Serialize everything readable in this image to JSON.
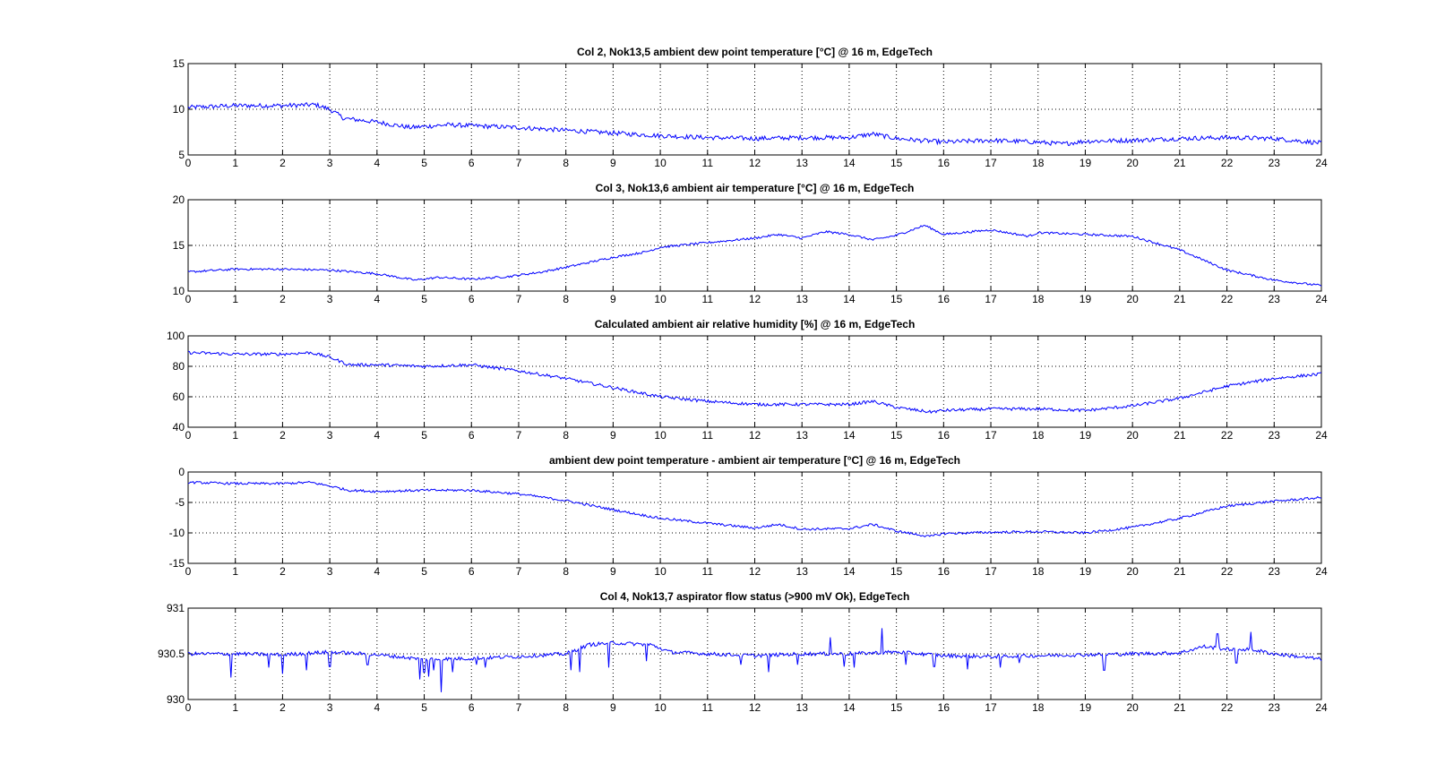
{
  "colors": {
    "line": "#0000ff",
    "axes": "#000000",
    "background": "#ffffff"
  },
  "chart_data": [
    {
      "type": "line",
      "title": "Col 2, Nok13,5  ambient dew point temperature [°C] @ 16 m, EdgeTech",
      "xlabel": "",
      "ylabel": "",
      "xlim": [
        0,
        24
      ],
      "ylim": [
        5,
        15
      ],
      "xticks": [
        0,
        1,
        2,
        3,
        4,
        5,
        6,
        7,
        8,
        9,
        10,
        11,
        12,
        13,
        14,
        15,
        16,
        17,
        18,
        19,
        20,
        21,
        22,
        23,
        24
      ],
      "xtick_labels": [
        "0",
        "1",
        "2",
        "3",
        "4",
        "5",
        "6",
        "7",
        "8",
        "9",
        "10",
        "11",
        "12",
        "13",
        "14",
        "15",
        "16",
        "17",
        "18",
        "19",
        "20",
        "21",
        "22",
        "23",
        "24"
      ],
      "yticks": [
        5,
        10,
        15
      ],
      "ytick_labels": [
        "5",
        "10",
        "15"
      ],
      "grid": true,
      "noise": 0.25,
      "x": [
        0,
        1,
        2,
        2.7,
        3.0,
        3.3,
        4,
        4.7,
        5.5,
        6,
        7,
        8,
        9,
        10,
        11,
        12,
        13,
        14,
        14.5,
        15,
        16,
        17,
        18,
        18.5,
        19,
        20,
        21,
        22,
        23,
        24
      ],
      "y": [
        10.2,
        10.4,
        10.4,
        10.5,
        10.0,
        9.0,
        8.6,
        8.0,
        8.3,
        8.2,
        8.0,
        7.7,
        7.4,
        7.1,
        6.9,
        6.8,
        6.9,
        6.9,
        7.3,
        6.8,
        6.4,
        6.6,
        6.4,
        6.2,
        6.5,
        6.6,
        6.8,
        6.9,
        6.8,
        6.3
      ]
    },
    {
      "type": "line",
      "title": "Col 3, Nok13,6  ambient air temperature [°C] @ 16 m, EdgeTech",
      "xlabel": "",
      "ylabel": "",
      "xlim": [
        0,
        24
      ],
      "ylim": [
        10,
        20
      ],
      "xticks": [
        0,
        1,
        2,
        3,
        4,
        5,
        6,
        7,
        8,
        9,
        10,
        11,
        12,
        13,
        14,
        15,
        16,
        17,
        18,
        19,
        20,
        21,
        22,
        23,
        24
      ],
      "xtick_labels": [
        "0",
        "1",
        "2",
        "3",
        "4",
        "5",
        "6",
        "7",
        "8",
        "9",
        "10",
        "11",
        "12",
        "13",
        "14",
        "15",
        "16",
        "17",
        "18",
        "19",
        "20",
        "21",
        "22",
        "23",
        "24"
      ],
      "yticks": [
        10,
        15,
        20
      ],
      "ytick_labels": [
        "10",
        "15",
        "20"
      ],
      "grid": true,
      "noise": 0.12,
      "x": [
        0,
        1,
        2,
        3,
        4,
        4.8,
        5.3,
        6,
        6.8,
        7.5,
        8,
        9,
        9.7,
        10,
        11,
        12,
        12.5,
        13,
        13.5,
        14,
        14.5,
        15,
        15.6,
        16,
        17,
        17.8,
        18,
        19,
        20,
        21,
        22,
        23,
        24
      ],
      "y": [
        12.1,
        12.4,
        12.4,
        12.3,
        11.9,
        11.2,
        11.5,
        11.3,
        11.6,
        12.1,
        12.6,
        13.7,
        14.3,
        14.8,
        15.3,
        15.8,
        16.2,
        15.8,
        16.5,
        16.2,
        15.6,
        16.1,
        17.2,
        16.2,
        16.7,
        16.0,
        16.4,
        16.2,
        16.0,
        14.5,
        12.3,
        11.2,
        10.6
      ]
    },
    {
      "type": "line",
      "title": "Calculated  ambient air relative humidity [%] @ 16 m, EdgeTech",
      "xlabel": "",
      "ylabel": "",
      "xlim": [
        0,
        24
      ],
      "ylim": [
        40,
        100
      ],
      "xticks": [
        0,
        1,
        2,
        3,
        4,
        5,
        6,
        7,
        8,
        9,
        10,
        11,
        12,
        13,
        14,
        15,
        16,
        17,
        18,
        19,
        20,
        21,
        22,
        23,
        24
      ],
      "xtick_labels": [
        "0",
        "1",
        "2",
        "3",
        "4",
        "5",
        "6",
        "7",
        "8",
        "9",
        "10",
        "11",
        "12",
        "13",
        "14",
        "15",
        "16",
        "17",
        "18",
        "19",
        "20",
        "21",
        "22",
        "23",
        "24"
      ],
      "yticks": [
        40,
        60,
        80,
        100
      ],
      "ytick_labels": [
        "40",
        "60",
        "80",
        "100"
      ],
      "grid": true,
      "noise": 1.0,
      "x": [
        0,
        1,
        2,
        2.6,
        3.0,
        3.4,
        4,
        5,
        6,
        7,
        8,
        9,
        10,
        11,
        12,
        13,
        14,
        14.5,
        15,
        15.7,
        16,
        17,
        18,
        19,
        20,
        21,
        22,
        23,
        24
      ],
      "y": [
        89,
        88,
        88,
        89,
        86,
        81,
        81,
        80,
        81,
        77,
        72,
        66,
        60,
        57,
        55,
        55,
        55,
        57,
        53,
        50,
        51,
        52,
        52,
        51,
        54,
        59,
        67,
        72,
        75
      ]
    },
    {
      "type": "line",
      "title": "ambient dew point temperature - ambient air temperature [°C] @ 16 m, EdgeTech",
      "xlabel": "",
      "ylabel": "",
      "xlim": [
        0,
        24
      ],
      "ylim": [
        -15,
        0
      ],
      "xticks": [
        0,
        1,
        2,
        3,
        4,
        5,
        6,
        7,
        8,
        9,
        10,
        11,
        12,
        13,
        14,
        15,
        16,
        17,
        18,
        19,
        20,
        21,
        22,
        23,
        24
      ],
      "xtick_labels": [
        "0",
        "1",
        "2",
        "3",
        "4",
        "5",
        "6",
        "7",
        "8",
        "9",
        "10",
        "11",
        "12",
        "13",
        "14",
        "15",
        "16",
        "17",
        "18",
        "19",
        "20",
        "21",
        "22",
        "23",
        "24"
      ],
      "yticks": [
        -15,
        -10,
        -5,
        0
      ],
      "ytick_labels": [
        "-15",
        "-10",
        "-5",
        "0"
      ],
      "grid": true,
      "noise": 0.2,
      "x": [
        0,
        1,
        2,
        2.6,
        3.0,
        3.4,
        4,
        5,
        6,
        7,
        8,
        9,
        10,
        11,
        12,
        12.5,
        13,
        14,
        14.5,
        15,
        15.7,
        16,
        17,
        18,
        19,
        20,
        21,
        22,
        23,
        24
      ],
      "y": [
        -1.7,
        -1.9,
        -1.9,
        -1.7,
        -2.3,
        -3.0,
        -3.2,
        -3.0,
        -3.0,
        -3.6,
        -4.7,
        -6.2,
        -7.6,
        -8.4,
        -9.2,
        -8.6,
        -9.4,
        -9.3,
        -8.6,
        -9.7,
        -10.6,
        -10.1,
        -9.9,
        -9.8,
        -10.0,
        -9.1,
        -7.6,
        -5.6,
        -4.8,
        -4.2
      ]
    },
    {
      "type": "line",
      "title": "Col 4, Nok13,7  aspirator flow status (>900 mV Ok), EdgeTech",
      "xlabel": "",
      "ylabel": "",
      "xlim": [
        0,
        24
      ],
      "ylim": [
        930,
        931
      ],
      "xticks": [
        0,
        1,
        2,
        3,
        4,
        5,
        6,
        7,
        8,
        9,
        10,
        11,
        12,
        13,
        14,
        15,
        16,
        17,
        18,
        19,
        20,
        21,
        22,
        23,
        24
      ],
      "xtick_labels": [
        "0",
        "1",
        "2",
        "3",
        "4",
        "5",
        "6",
        "7",
        "8",
        "9",
        "10",
        "11",
        "12",
        "13",
        "14",
        "15",
        "16",
        "17",
        "18",
        "19",
        "20",
        "21",
        "22",
        "23",
        "24"
      ],
      "yticks": [
        930,
        930.5,
        931
      ],
      "ytick_labels": [
        "930",
        "930.5",
        "931"
      ],
      "grid": true,
      "noise": 0.02,
      "x": [
        0,
        1,
        2,
        3,
        4,
        5,
        6,
        7,
        8,
        8.5,
        9,
        9.8,
        10.2,
        11,
        12,
        13,
        14,
        15,
        16,
        17,
        18,
        19,
        20,
        21,
        21.5,
        22,
        22.5,
        23,
        24
      ],
      "y": [
        930.5,
        930.5,
        930.49,
        930.52,
        930.49,
        930.44,
        930.45,
        930.47,
        930.5,
        930.6,
        930.62,
        930.6,
        930.52,
        930.5,
        930.48,
        930.5,
        930.5,
        930.52,
        930.48,
        930.47,
        930.48,
        930.49,
        930.5,
        930.51,
        930.58,
        930.55,
        930.55,
        930.5,
        930.44
      ],
      "spikes_x": [
        0.9,
        1.7,
        2.0,
        2.5,
        3.0,
        3.8,
        4.9,
        5.0,
        5.1,
        5.2,
        5.35,
        5.6,
        6.1,
        6.3,
        8.1,
        8.3,
        8.5,
        8.9,
        9.7,
        11.7,
        12.3,
        12.9,
        13.6,
        13.9,
        14.1,
        14.7,
        15.2,
        15.8,
        16.5,
        17.2,
        17.6,
        19.4,
        21.8,
        22.2,
        22.5
      ],
      "spikes_y": [
        930.24,
        930.35,
        930.28,
        930.32,
        930.36,
        930.38,
        930.22,
        930.3,
        930.25,
        930.32,
        930.08,
        930.3,
        930.38,
        930.35,
        930.32,
        930.3,
        930.62,
        930.35,
        930.42,
        930.38,
        930.3,
        930.38,
        930.68,
        930.36,
        930.35,
        930.78,
        930.38,
        930.36,
        930.33,
        930.35,
        930.4,
        930.32,
        930.72,
        930.4,
        930.74
      ]
    }
  ]
}
